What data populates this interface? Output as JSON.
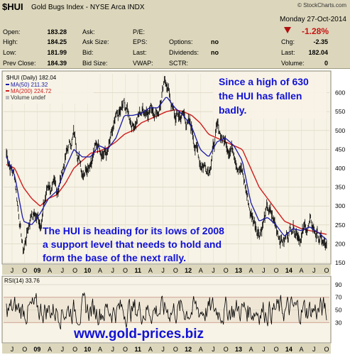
{
  "header": {
    "symbol": "$HUI",
    "name": "Gold Bugs Index - NYSE Arca INDX",
    "credit": "© StockCharts.com",
    "date": "Monday 27-Oct-2014",
    "change_pct": "-1.28%",
    "rows": [
      [
        {
          "l": "Open:",
          "v": "183.28"
        },
        {
          "l": "Ask:",
          "v": ""
        },
        {
          "l": "P/E:",
          "v": ""
        },
        {
          "l": "",
          "v": ""
        }
      ],
      [
        {
          "l": "High:",
          "v": "184.25"
        },
        {
          "l": "Ask Size:",
          "v": ""
        },
        {
          "l": "EPS:",
          "v": ""
        },
        {
          "l": "Options:",
          "v": "no"
        }
      ],
      [
        {
          "l": "Low:",
          "v": "181.99"
        },
        {
          "l": "Bid:",
          "v": ""
        },
        {
          "l": "Last:",
          "v": ""
        },
        {
          "l": "Dividends:",
          "v": "no"
        }
      ],
      [
        {
          "l": "Prev Close:",
          "v": "184.39"
        },
        {
          "l": "Bid Size:",
          "v": ""
        },
        {
          "l": "VWAP:",
          "v": ""
        },
        {
          "l": "SCTR:",
          "v": ""
        }
      ]
    ],
    "right_rows": [
      {
        "l": "Chg:",
        "v": "-2.35"
      },
      {
        "l": "Last:",
        "v": "182.04"
      },
      {
        "l": "Volume:",
        "v": "0"
      }
    ]
  },
  "legend": {
    "line1": "$HUI (Daily) 182.04",
    "line2": "MA(50) 211.32",
    "line3": "MA(200) 224.72",
    "line4": "Volume undef"
  },
  "annotations": {
    "top_right": [
      "Since a high of 630",
      "the HUI has fallen",
      "badly."
    ],
    "bottom": [
      "The HUI is heading for its lows of 2008",
      "a support level that needs to hold and",
      "form the base of the next rally."
    ]
  },
  "rsi_label": "RSI(14) 33.76",
  "watermark": "www.gold-prices.biz",
  "colors": {
    "header_bg": "#dcd7bc",
    "panel_bg": "#f7f3e6",
    "price": "#000000",
    "ma50": "#1a1aa6",
    "ma200": "#d01c1c",
    "annotation": "#1212d6",
    "down": "#b01010",
    "rsi_band": "#c89a88"
  },
  "chart_data": [
    {
      "type": "line",
      "title": "$HUI Gold Bugs Index (Daily)",
      "ylim": [
        150,
        650
      ],
      "y_ticks": [
        150,
        200,
        250,
        300,
        350,
        400,
        450,
        500,
        550,
        600
      ],
      "x_tick_labels": [
        "J",
        "O",
        "09",
        "A",
        "J",
        "O",
        "10",
        "A",
        "J",
        "O",
        "11",
        "A",
        "J",
        "O",
        "12",
        "A",
        "J",
        "O",
        "13",
        "A",
        "J",
        "O",
        "14",
        "A",
        "J",
        "O"
      ],
      "series": [
        {
          "name": "$HUI",
          "x": [
            "2008-07",
            "2008-09",
            "2008-11",
            "2009-01",
            "2009-03",
            "2009-05",
            "2009-07",
            "2009-09",
            "2009-11",
            "2010-01",
            "2010-03",
            "2010-05",
            "2010-07",
            "2010-09",
            "2010-11",
            "2011-01",
            "2011-03",
            "2011-05",
            "2011-07",
            "2011-09",
            "2011-11",
            "2012-01",
            "2012-03",
            "2012-05",
            "2012-07",
            "2012-09",
            "2012-11",
            "2013-01",
            "2013-03",
            "2013-05",
            "2013-07",
            "2013-09",
            "2013-11",
            "2014-01",
            "2014-03",
            "2014-05",
            "2014-07",
            "2014-09",
            "2014-10"
          ],
          "values": [
            440,
            380,
            180,
            290,
            260,
            360,
            330,
            430,
            490,
            400,
            440,
            470,
            440,
            510,
            560,
            520,
            550,
            570,
            560,
            630,
            530,
            540,
            500,
            420,
            410,
            500,
            470,
            460,
            390,
            280,
            240,
            290,
            240,
            210,
            260,
            230,
            250,
            220,
            182
          ]
        },
        {
          "name": "MA(50)",
          "values": [
            430,
            380,
            260,
            250,
            280,
            320,
            340,
            400,
            450,
            430,
            430,
            460,
            450,
            480,
            540,
            540,
            545,
            560,
            560,
            590,
            560,
            540,
            510,
            450,
            430,
            470,
            480,
            460,
            420,
            310,
            260,
            270,
            250,
            220,
            240,
            235,
            245,
            230,
            211
          ]
        },
        {
          "name": "MA(200)",
          "values": [
            410,
            400,
            350,
            320,
            300,
            320,
            330,
            360,
            400,
            420,
            440,
            445,
            455,
            470,
            490,
            500,
            520,
            530,
            540,
            550,
            555,
            550,
            540,
            520,
            490,
            480,
            470,
            460,
            450,
            400,
            350,
            320,
            290,
            260,
            250,
            240,
            235,
            230,
            225
          ]
        }
      ]
    },
    {
      "type": "line",
      "title": "RSI(14)",
      "ylim": [
        0,
        100
      ],
      "y_ticks": [
        30,
        50,
        70,
        90
      ],
      "x_tick_labels": [
        "J",
        "O",
        "09",
        "A",
        "J",
        "O",
        "10",
        "A",
        "J",
        "O",
        "11",
        "A",
        "J",
        "O",
        "12",
        "A",
        "J",
        "O",
        "13",
        "A",
        "J",
        "O",
        "14",
        "A",
        "J",
        "O"
      ],
      "series": [
        {
          "name": "RSI(14)",
          "last": 33.76
        }
      ]
    }
  ]
}
